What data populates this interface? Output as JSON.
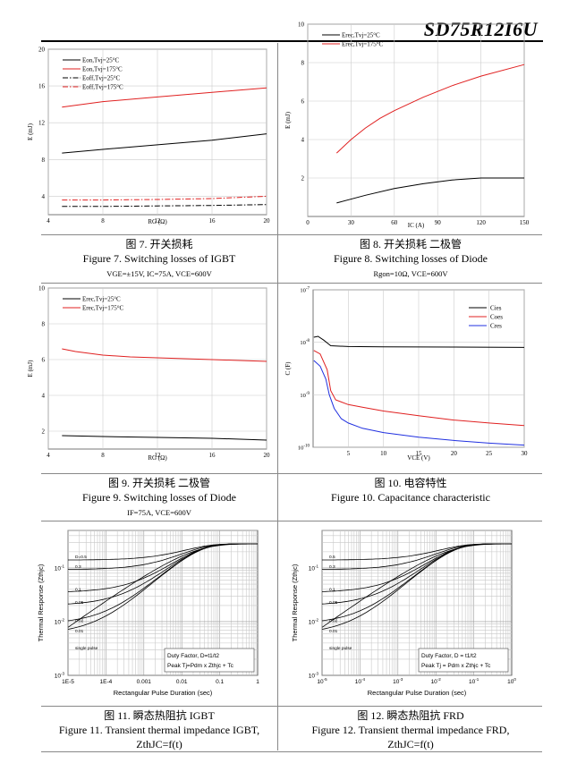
{
  "header": {
    "part_number": "SD75R12I6U"
  },
  "figures": [
    {
      "id": "fig7",
      "caption_cn": "图 7. 开关损耗",
      "caption_en": "Figure 7.  Switching losses of IGBT",
      "conditions": "VGE=±15V, IC=75A, VCE=600V",
      "ylabel": "E (mJ)",
      "xlabel": "RG (Ω)",
      "legend": [
        "Eon,Tvj=25°C",
        "Eon,Tvj=175°C",
        "Eoff,Tvj=25°C",
        "Eoff,Tvj=175°C"
      ]
    },
    {
      "id": "fig8",
      "caption_cn": "图 8. 开关损耗  二极管",
      "caption_en": "Figure 8.  Switching losses of Diode",
      "conditions": "Rgon=10Ω, VCE=600V",
      "ylabel": "E (mJ)",
      "xlabel": "IC (A)",
      "legend": [
        "Erec,Tvj=25°C",
        "Erec,Tvj=175°C"
      ]
    },
    {
      "id": "fig9",
      "caption_cn": "图 9. 开关损耗  二极管",
      "caption_en": "Figure 9.  Switching losses of Diode",
      "conditions": "IF=75A, VCE=600V",
      "ylabel": "E (mJ)",
      "xlabel": "RG (Ω)",
      "legend": [
        "Erec,Tvj=25°C",
        "Erec,Tvj=175°C"
      ]
    },
    {
      "id": "fig10",
      "caption_cn": "图 10. 电容特性",
      "caption_en": "Figure 10.  Capacitance characteristic",
      "conditions": "",
      "ylabel": "C (F)",
      "xlabel": "VCE (V)",
      "legend": [
        "Cies",
        "Coes",
        "Cres"
      ]
    },
    {
      "id": "fig11",
      "caption_cn": "图 11. 瞬态热阻抗 IGBT",
      "caption_en": "Figure 11.  Transient thermal impedance IGBT,",
      "conditions": "ZthJC=f(t)",
      "ylabel": "Thermal Response (Zthjc)",
      "xlabel": "Rectangular Pulse Duration (sec)",
      "legend": [
        "D=0.5",
        "0.3",
        "0.1",
        "0.05",
        "0.02",
        "0.01",
        "single pulse"
      ],
      "note1": "Duty Factor, D=t1/t2",
      "note2": "Peak Tj=Pdm x Zthjc + Tc"
    },
    {
      "id": "fig12",
      "caption_cn": "图 12. 瞬态热阻抗 FRD",
      "caption_en": "Figure 12.  Transient thermal impedance FRD,",
      "conditions": "ZthJC=f(t)",
      "ylabel": "Thermal Response (Zthjc)",
      "xlabel": "Rectangular Pulse Duration (sec)",
      "legend": [
        "0.5",
        "0.3",
        "0.1",
        "0.05",
        "0.02",
        "0.01",
        "single pulse"
      ],
      "note1": "Duty Factor, D = t1/t2",
      "note2": "Peak Tj = Pdm x Zthjc + Tc"
    }
  ],
  "chart_data": [
    {
      "type": "line",
      "x_ticks": [
        4,
        8,
        12,
        16,
        20
      ],
      "y_ticks": [
        4,
        8,
        12,
        16,
        20
      ],
      "xlim": [
        4,
        20
      ],
      "ylim": [
        2,
        20
      ],
      "grid": true,
      "legend_position": "top-left",
      "series": [
        {
          "name": "Eon,Tvj=25°C",
          "color": "#000000",
          "style": "solid",
          "x": [
            5,
            8,
            12,
            16,
            20
          ],
          "y": [
            8.7,
            9.1,
            9.6,
            10.1,
            10.8
          ]
        },
        {
          "name": "Eon,Tvj=175°C",
          "color": "#e02020",
          "style": "solid",
          "x": [
            5,
            8,
            12,
            16,
            20
          ],
          "y": [
            13.7,
            14.3,
            14.8,
            15.3,
            15.8
          ]
        },
        {
          "name": "Eoff,Tvj=25°C",
          "color": "#000000",
          "style": "dashdot",
          "x": [
            5,
            8,
            12,
            16,
            20
          ],
          "y": [
            2.9,
            2.9,
            2.95,
            3.0,
            3.1
          ]
        },
        {
          "name": "Eoff,Tvj=175°C",
          "color": "#e02020",
          "style": "dashdot",
          "x": [
            5,
            8,
            12,
            16,
            20
          ],
          "y": [
            3.6,
            3.6,
            3.65,
            3.75,
            4.0
          ]
        }
      ]
    },
    {
      "type": "line",
      "x_ticks": [
        0,
        30,
        60,
        90,
        120,
        150
      ],
      "y_ticks": [
        2,
        4,
        6,
        8,
        10
      ],
      "xlim": [
        0,
        150
      ],
      "ylim": [
        0,
        10
      ],
      "grid": true,
      "legend_position": "top-left",
      "series": [
        {
          "name": "Erec,Tvj=25°C",
          "color": "#000000",
          "style": "solid",
          "x": [
            20,
            40,
            60,
            80,
            100,
            120,
            150
          ],
          "y": [
            0.7,
            1.1,
            1.45,
            1.7,
            1.9,
            2.0,
            2.0
          ]
        },
        {
          "name": "Erec,Tvj=175°C",
          "color": "#e02020",
          "style": "solid",
          "x": [
            20,
            30,
            40,
            50,
            60,
            80,
            100,
            120,
            150
          ],
          "y": [
            3.3,
            4.0,
            4.6,
            5.1,
            5.5,
            6.2,
            6.8,
            7.3,
            7.9
          ]
        }
      ]
    },
    {
      "type": "line",
      "x_ticks": [
        4,
        8,
        12,
        16,
        20
      ],
      "y_ticks": [
        2,
        4,
        6,
        8,
        10
      ],
      "xlim": [
        4,
        20
      ],
      "ylim": [
        1,
        10
      ],
      "grid": true,
      "legend_position": "top-left",
      "series": [
        {
          "name": "Erec,Tvj=25°C",
          "color": "#000000",
          "style": "solid",
          "x": [
            5,
            8,
            12,
            16,
            20
          ],
          "y": [
            1.75,
            1.7,
            1.65,
            1.6,
            1.5
          ]
        },
        {
          "name": "Erec,Tvj=175°C",
          "color": "#e02020",
          "style": "solid",
          "x": [
            5,
            6,
            8,
            10,
            12,
            16,
            20
          ],
          "y": [
            6.6,
            6.45,
            6.25,
            6.15,
            6.1,
            6.0,
            5.9
          ]
        }
      ]
    },
    {
      "type": "line",
      "log_y": true,
      "x_ticks": [
        5,
        10,
        15,
        20,
        25,
        30
      ],
      "y_ticks": [
        "10^-10",
        "10^-9",
        "10^-8",
        "10^-7"
      ],
      "xlim": [
        0,
        30
      ],
      "ylim": [
        1e-10,
        1e-07
      ],
      "grid": true,
      "legend_position": "top-right",
      "series": [
        {
          "name": "Cies",
          "color": "#000000",
          "style": "solid",
          "x": [
            0.1,
            0.7,
            1.5,
            2.5,
            5,
            10,
            20,
            30
          ],
          "y": [
            1.25e-08,
            1.3e-08,
            1.1e-08,
            8.6e-09,
            8.3e-09,
            8.2e-09,
            8.1e-09,
            8e-09
          ]
        },
        {
          "name": "Coes",
          "color": "#e02020",
          "style": "solid",
          "x": [
            0.1,
            1,
            2,
            2.5,
            3.2,
            5,
            7,
            10,
            15,
            20,
            25,
            30
          ],
          "y": [
            7e-09,
            6e-09,
            3e-09,
            1.2e-09,
            8e-10,
            6.5e-10,
            5.8e-10,
            4.9e-10,
            4e-10,
            3.3e-10,
            2.9e-10,
            2.6e-10
          ]
        },
        {
          "name": "Cres",
          "color": "#2030e0",
          "style": "solid",
          "x": [
            0.1,
            1,
            1.8,
            2.3,
            3,
            4,
            5,
            7,
            10,
            15,
            20,
            25,
            30
          ],
          "y": [
            4.5e-09,
            3.5e-09,
            2e-09,
            1e-09,
            5.5e-10,
            3.5e-10,
            2.9e-10,
            2.3e-10,
            1.9e-10,
            1.55e-10,
            1.35e-10,
            1.2e-10,
            1.1e-10
          ]
        }
      ]
    },
    {
      "type": "line",
      "log_x": true,
      "log_y": true,
      "x_ticks": [
        "1E-5",
        "1E-4",
        "0.001",
        "0.01",
        "0.1",
        "1"
      ],
      "y_ticks": [
        "10^-3",
        "10^-2",
        "10^-1"
      ],
      "xlim": [
        1e-05,
        1
      ],
      "ylim": [
        0.001,
        0.5
      ],
      "grid": true,
      "series": [
        {
          "name": "D=0.5",
          "y0": 0.14
        },
        {
          "name": "0.3",
          "y0": 0.093
        },
        {
          "name": "0.1",
          "y0": 0.035
        },
        {
          "name": "0.05",
          "y0": 0.02
        },
        {
          "name": "0.02",
          "y0": 0.009
        },
        {
          "name": "0.01",
          "y0": 0.0058
        },
        {
          "name": "single pulse",
          "y0": 0.0025
        }
      ],
      "steady_state": 0.28
    },
    {
      "type": "line",
      "log_x": true,
      "log_y": true,
      "x_ticks": [
        "10^-5",
        "10^-4",
        "10^-3",
        "10^-2",
        "10^-1",
        "10^0"
      ],
      "y_ticks": [
        "10^-3",
        "10^-2",
        "10^-1"
      ],
      "xlim": [
        1e-05,
        1
      ],
      "ylim": [
        0.001,
        0.5
      ],
      "grid": true,
      "series": [
        {
          "name": "0.5",
          "y0": 0.14
        },
        {
          "name": "0.3",
          "y0": 0.093
        },
        {
          "name": "0.1",
          "y0": 0.035
        },
        {
          "name": "0.05",
          "y0": 0.02
        },
        {
          "name": "0.02",
          "y0": 0.009
        },
        {
          "name": "0.01",
          "y0": 0.0058
        },
        {
          "name": "single pulse",
          "y0": 0.0025
        }
      ],
      "steady_state": 0.28
    }
  ]
}
